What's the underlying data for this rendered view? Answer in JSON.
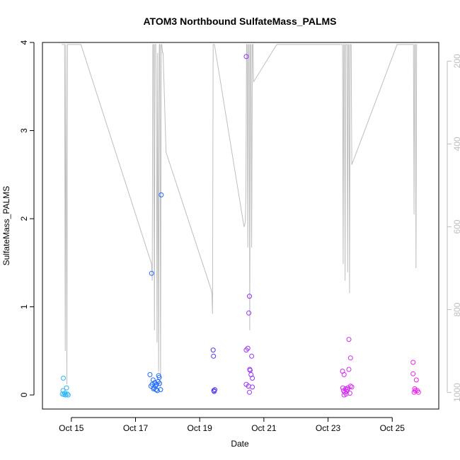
{
  "chart_data": {
    "type": "scatter",
    "title": "ATOM3 Northbound SulfateMass_PALMS",
    "xlabel": "Date",
    "ylabel": "SulfateMass_PALMS",
    "x_unit": "day of October (2017)",
    "xlim": [
      14.1,
      26.45
    ],
    "ylim": [
      -0.16,
      4.0
    ],
    "x_ticks": [
      {
        "value": 15,
        "label": "Oct 15"
      },
      {
        "value": 17,
        "label": "Oct 17"
      },
      {
        "value": 19,
        "label": "Oct 19"
      },
      {
        "value": 21,
        "label": "Oct 21"
      },
      {
        "value": 23,
        "label": "Oct 23"
      },
      {
        "value": 25,
        "label": "Oct 25"
      }
    ],
    "y_ticks": [
      0,
      1,
      2,
      3,
      4
    ],
    "right_axis": {
      "description": "pressure, inverted",
      "range_top": 155,
      "range_bottom": 1040,
      "ticks": [
        200,
        400,
        600,
        800,
        1000
      ],
      "color": "#bebebe"
    },
    "grid": false,
    "legend": "none",
    "colors": {
      "pressure_line": "#bebebe",
      "axis": "#000000",
      "right_axis_labels": "#bebebe"
    },
    "series": [
      {
        "color": "#29b6f6",
        "points": [
          [
            14.75,
            0.19
          ],
          [
            14.74,
            0.05
          ],
          [
            14.8,
            0.02
          ],
          [
            14.72,
            0.01
          ],
          [
            14.85,
            0.08
          ],
          [
            14.87,
            0.01
          ],
          [
            14.9,
            0.0
          ],
          [
            14.77,
            0.005
          ],
          [
            14.82,
            0.0
          ]
        ]
      },
      {
        "color": "#1f6bff",
        "points": [
          [
            17.5,
            1.38
          ],
          [
            17.8,
            2.27
          ],
          [
            17.45,
            0.23
          ],
          [
            17.55,
            0.17
          ],
          [
            17.6,
            0.14
          ],
          [
            17.72,
            0.22
          ],
          [
            17.74,
            0.2
          ],
          [
            17.52,
            0.12
          ],
          [
            17.48,
            0.1
          ],
          [
            17.62,
            0.1
          ],
          [
            17.58,
            0.08
          ],
          [
            17.66,
            0.12
          ],
          [
            17.7,
            0.15
          ],
          [
            17.64,
            0.06
          ],
          [
            17.68,
            0.05
          ],
          [
            17.78,
            0.06
          ],
          [
            17.56,
            0.07
          ],
          [
            17.75,
            0.13
          ]
        ]
      },
      {
        "color": "#5533ee",
        "points": [
          [
            19.42,
            0.51
          ],
          [
            19.43,
            0.44
          ],
          [
            19.47,
            0.06
          ],
          [
            19.45,
            0.04
          ],
          [
            19.44,
            0.05
          ]
        ]
      },
      {
        "color": "#9b30ff",
        "points": [
          [
            20.45,
            3.84
          ],
          [
            20.55,
            1.12
          ],
          [
            20.53,
            0.93
          ],
          [
            20.45,
            0.51
          ],
          [
            20.5,
            0.53
          ],
          [
            20.62,
            0.44
          ],
          [
            20.56,
            0.29
          ],
          [
            20.57,
            0.28
          ],
          [
            20.6,
            0.23
          ],
          [
            20.64,
            0.19
          ],
          [
            20.45,
            0.12
          ],
          [
            20.52,
            0.1
          ],
          [
            20.64,
            0.09
          ],
          [
            20.55,
            0.03
          ]
        ]
      },
      {
        "color": "#d22cf0",
        "points": [
          [
            23.65,
            0.63
          ],
          [
            23.7,
            0.42
          ],
          [
            23.45,
            0.27
          ],
          [
            23.65,
            0.29
          ],
          [
            23.5,
            0.23
          ],
          [
            23.46,
            0.08
          ],
          [
            23.55,
            0.07
          ],
          [
            23.62,
            0.08
          ],
          [
            23.7,
            0.1
          ],
          [
            23.48,
            0.05
          ],
          [
            23.52,
            0.03
          ],
          [
            23.56,
            0.01
          ],
          [
            23.58,
            0.04
          ],
          [
            23.68,
            0.02
          ],
          [
            23.5,
            0.0
          ],
          [
            23.6,
            0.06
          ],
          [
            23.74,
            0.09
          ]
        ]
      },
      {
        "color": "#ee1fee",
        "points": [
          [
            25.65,
            0.37
          ],
          [
            25.65,
            0.24
          ],
          [
            25.75,
            0.17
          ],
          [
            25.7,
            0.07
          ],
          [
            25.78,
            0.05
          ],
          [
            25.68,
            0.03
          ],
          [
            25.82,
            0.03
          ],
          [
            25.72,
            0.05
          ]
        ]
      }
    ],
    "pressure_line": {
      "x": [
        14.7,
        14.79,
        14.81,
        14.83,
        14.86,
        14.88,
        15.3,
        17.5,
        17.52,
        17.54,
        17.56,
        17.57,
        17.59,
        17.6,
        17.63,
        17.65,
        17.67,
        17.69,
        17.72,
        17.74,
        17.76,
        17.78,
        17.8,
        17.82,
        17.84,
        17.86,
        17.95,
        19.35,
        19.38,
        19.4,
        19.42,
        19.44,
        19.46,
        20.38,
        20.42,
        20.44,
        20.46,
        20.48,
        20.5,
        20.52,
        20.54,
        20.56,
        20.58,
        20.6,
        20.62,
        20.64,
        20.66,
        20.68,
        21.4,
        23.43,
        23.45,
        23.47,
        23.49,
        23.51,
        23.53,
        23.55,
        23.57,
        23.59,
        23.61,
        23.63,
        23.65,
        23.67,
        23.69,
        23.72,
        23.74,
        25.15,
        25.66,
        25.68,
        25.7,
        25.72,
        25.74,
        25.76,
        25.78
      ],
      "p": [
        160,
        160,
        900,
        160,
        980,
        160,
        160,
        690,
        730,
        160,
        160,
        420,
        850,
        160,
        160,
        330,
        880,
        180,
        950,
        160,
        160,
        990,
        160,
        160,
        180,
        180,
        420,
        750,
        760,
        810,
        160,
        160,
        160,
        600,
        590,
        520,
        160,
        160,
        650,
        160,
        160,
        850,
        160,
        160,
        650,
        160,
        160,
        250,
        160,
        160,
        160,
        690,
        160,
        160,
        730,
        160,
        160,
        160,
        710,
        160,
        160,
        760,
        160,
        160,
        450,
        160,
        160,
        570,
        160,
        160,
        700,
        160,
        160
      ]
    }
  }
}
